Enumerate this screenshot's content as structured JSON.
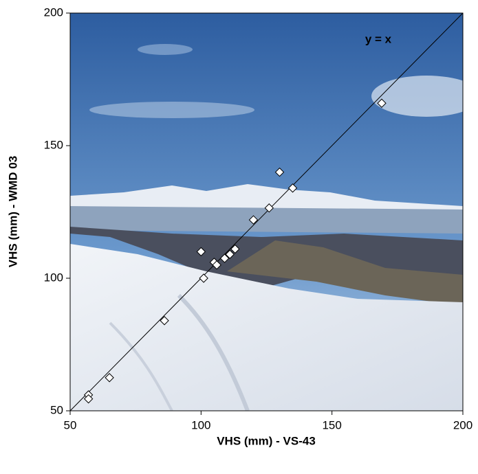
{
  "chart_data": {
    "type": "scatter",
    "xlabel": "VHS (mm) - VS-43",
    "ylabel": "VHS (mm) - WMD 03",
    "annotation": "y = x",
    "x": [
      57,
      57,
      65,
      86,
      101,
      100,
      105,
      106,
      109,
      111,
      113,
      120,
      126,
      130,
      135,
      169
    ],
    "y": [
      56,
      54.5,
      62.5,
      84,
      100,
      110,
      106,
      105,
      107.5,
      109,
      111,
      122,
      126.5,
      140,
      134,
      166
    ],
    "color": "#ffffff",
    "xlim": [
      50,
      200
    ],
    "xticks": [
      50,
      100,
      150,
      200
    ],
    "ylim": [
      50,
      200
    ],
    "yticks": [
      50,
      100,
      150,
      200
    ]
  }
}
